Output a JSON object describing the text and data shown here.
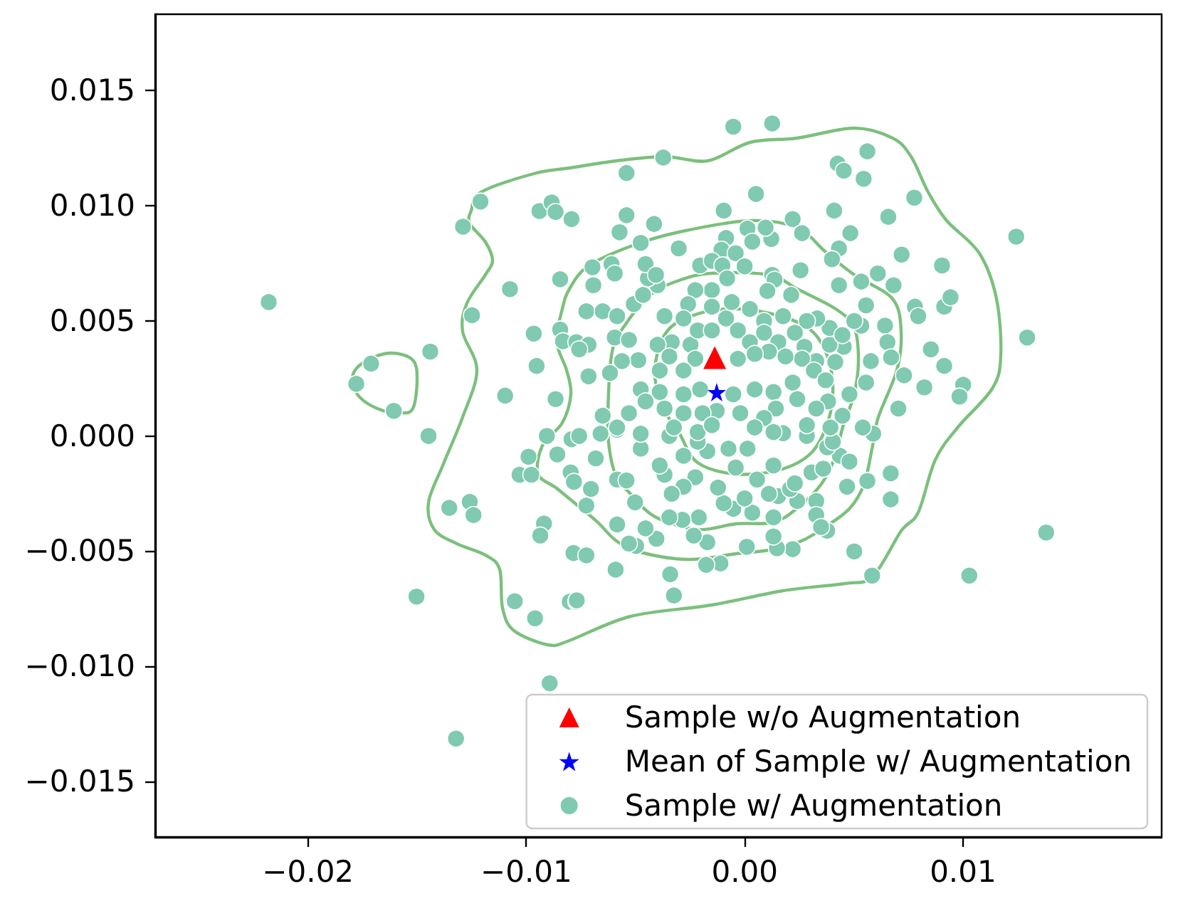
{
  "chart_data": {
    "type": "scatter",
    "xlim": [
      -0.027,
      0.0191
    ],
    "ylim": [
      -0.0174,
      0.0183
    ],
    "xticks": [
      {
        "value": -0.02,
        "label": "−0.02"
      },
      {
        "value": -0.01,
        "label": "−0.01"
      },
      {
        "value": 0,
        "label": "0.00"
      },
      {
        "value": 0.01,
        "label": "0.01"
      }
    ],
    "yticks": [
      {
        "value": -0.015,
        "label": "−0.015"
      },
      {
        "value": -0.01,
        "label": "−0.010"
      },
      {
        "value": -0.005,
        "label": "−0.005"
      },
      {
        "value": 0,
        "label": "0.000"
      },
      {
        "value": 0.005,
        "label": "0.005"
      },
      {
        "value": 0.01,
        "label": "0.010"
      },
      {
        "value": 0.015,
        "label": "0.015"
      }
    ],
    "grid": false,
    "legend": "bottom right",
    "series": [
      {
        "name": "Sample w/o Augmentation",
        "type": "scatter",
        "marker": "triangle",
        "color": "#ff0000",
        "x": [
          -0.00137
        ],
        "values": [
          0.0034
        ]
      },
      {
        "name": "Mean of Sample w/ Augmentation",
        "type": "scatter",
        "marker": "star",
        "color": "#0000ff",
        "x": [
          -0.00128
        ],
        "values": [
          0.0019
        ]
      },
      {
        "name": "Sample w/ Augmentation",
        "type": "scatter",
        "marker": "circle",
        "color": "#7fcab0",
        "x": [
          -0.0218,
          -0.0121,
          -0.0129,
          -0.0094,
          -0.00884,
          -0.00866,
          -0.00793,
          -0.01075,
          -0.00845,
          -0.01249,
          -0.00966,
          -0.00845,
          -0.00832,
          -0.00771,
          -0.0144,
          -0.01711,
          -0.01779,
          -0.01607,
          -0.00953,
          -0.01097,
          -0.00866,
          -0.01448,
          -0.00906,
          -0.00793,
          -0.0099,
          -0.01031,
          -0.00977,
          -0.00858,
          -0.00797,
          -0.00782,
          -0.01353,
          -0.01259,
          -0.01242,
          -0.00919,
          -0.00936,
          -0.00784,
          -0.01503,
          -0.01053,
          -0.0096,
          -0.00801,
          -0.00771,
          -0.00893,
          -0.01322,
          0.01029,
          0.00584,
          0.00502,
          0.00669,
          0.00669,
          0.00562,
          0.00469,
          0.00436,
          0.0048,
          0.00589,
          0.00378,
          0.00328,
          0.00328,
          0.00378,
          0.0035,
          0.0022,
          0.00148,
          0.00132,
          0.00132,
          0.00241,
          0.00154,
          0.0001,
          -0.00111,
          -0.00176,
          -0.00171,
          -0.00233,
          -0.0021,
          -0.00285,
          -0.00341,
          -0.00324,
          -0.00404,
          -0.00454,
          -0.00497,
          -0.0053,
          -0.00584,
          -0.00591,
          -0.00769,
          -0.00725,
          -0.00725,
          -0.00502,
          -0.00345,
          0.00035,
          -0.00052,
          -0.00096,
          0,
          0.00208,
          0.00111,
          0.00057,
          0.00132,
          0.0023,
          0.00306,
          0.0036,
          0.00404,
          0.00285,
          0.00176,
          -0.00041,
          -0.00122,
          -0.00226,
          -0.0028,
          -0.00334,
          -0.00367,
          -0.0028,
          -0.00171,
          -0.00215,
          -0.00074,
          0.00013,
          -0.00389,
          -0.00476,
          -0.00584,
          -0.00682,
          -0.00704,
          -0.00541,
          -0.00758,
          -0.0066,
          -0.00584,
          -0.00345,
          -0.00052,
          0.00126,
          -0.00373,
          -0.00541,
          0.00426,
          0.00454,
          0.00562,
          0.00545,
          0.00052,
          -0.00096,
          0.0041,
          0.00777,
          0.00658,
          -0.00541,
          -0.00415,
          -0.00573,
          -0.00476,
          -0.00302,
          0.0022,
          0.00263,
          0.00484,
          0.00432,
          0.004,
          0.00719,
          0.00904,
          0.00013,
          0.00035,
          0.00122,
          0.00096,
          -0.00085,
          -0.00106,
          -0.00041,
          -0.00204,
          -0.0015,
          -0.00102,
          0,
          -0.0008,
          0.00256,
          0.00126,
          0.00137,
          0.00432,
          0.00534,
          0.0061,
          0.00682,
          0.00104,
          0.00213,
          0.00556,
          0.0078,
          0.00795,
          0.00914,
          0.00943,
          0.00643,
          0.00654,
          0.00534,
          0.00502,
          0.00853,
          0.00914,
          0.01001,
          0.00984,
          0.00823,
          0.0073,
          0.00671,
          0.00578,
          0.00556,
          0.0048,
          0.00704,
          0.00541,
          0.00415,
          0.00454,
          0.00389,
          0.00389,
          0.00448,
          0.00332,
          0.00285,
          0.00176,
          0.00089,
          0.00024,
          -0.00059,
          -0.0015,
          -0.00226,
          -0.00259,
          -0.0015,
          -0.00367,
          -0.0028,
          -0.00334,
          -0.00399,
          -0.00248,
          -0.00215,
          -0.0015,
          -0.00085,
          -0.00031,
          0.00024,
          0.00089,
          0.00154,
          0.0023,
          0.00274,
          0.00328,
          0.00263,
          0.00187,
          0.00111,
          0.00046,
          -0.00031,
          -0.00226,
          -0.0028,
          -0.00389,
          -0.00345,
          -0.00487,
          -0.00562,
          -0.00617,
          -0.00715,
          -0.00715,
          -0.00758,
          -0.00595,
          -0.0053,
          -0.00725,
          -0.0065,
          -0.00584,
          -0.00508,
          -0.00465,
          -0.00399,
          -0.00443,
          -0.00693,
          -0.00697,
          -0.0061,
          -0.00595,
          -0.00454,
          -0.00406,
          -0.00476,
          -0.00389,
          -0.0028,
          -0.00204,
          -0.00052,
          0.00046,
          0.00132,
          0.0022,
          0.00317,
          0.00371,
          0.00382,
          0.00328,
          0.00241,
          0.00143,
          0.00089,
          -0.0002,
          -0.00128,
          -0.00193,
          -0.0028,
          -0.00367,
          -0.00454,
          -0.0053,
          -0.0065,
          -0.00584,
          -0.00476,
          -0.00324,
          -0.00215,
          -0.0015,
          0.00046,
          0.00132,
          0.00285,
          0.00393,
          0.00448,
          0.01244,
          0.01294,
          0.01381
        ],
        "values": [
          0.00581,
          0.01017,
          0.00908,
          0.00976,
          0.01013,
          0.00972,
          0.00941,
          0.00637,
          0.0068,
          0.00524,
          0.00444,
          0.00462,
          0.00411,
          0.00407,
          0.00366,
          0.00314,
          0.00226,
          0.00109,
          0.00304,
          0.00175,
          0.0016,
          0,
          0,
          -0.00014,
          -0.0009,
          -0.00168,
          -0.00168,
          -0.0008,
          -0.00158,
          -0.00199,
          -0.00312,
          -0.00286,
          -0.00343,
          -0.0038,
          -0.00432,
          -0.00508,
          -0.00697,
          -0.00717,
          -0.00791,
          -0.00719,
          -0.00719,
          -0.01073,
          -0.01313,
          -0.00606,
          -0.00606,
          -0.00501,
          -0.00162,
          -0.00275,
          -0.00195,
          -0.0022,
          -0.00086,
          -0.00111,
          0.0001,
          -0.00049,
          -0.00282,
          -0.00343,
          -0.00411,
          -0.00395,
          -0.00491,
          -0.00487,
          -0.00436,
          -0.00353,
          -0.00282,
          -0.00261,
          -0.00481,
          -0.00553,
          -0.00559,
          -0.00461,
          -0.00432,
          -0.00353,
          -0.00364,
          -0.006,
          -0.00692,
          -0.00446,
          -0.00401,
          -0.00477,
          -0.00467,
          -0.00384,
          -0.0058,
          -0.00713,
          -0.00518,
          -0.00302,
          -0.00288,
          -0.00353,
          -0.00333,
          -0.00316,
          -0.00292,
          -0.00271,
          -0.0023,
          -0.00251,
          -0.00189,
          -0.00128,
          -0.00205,
          -0.00158,
          -0.00142,
          -0.00025,
          0,
          0.00012,
          -0.00137,
          -0.00224,
          -0.00179,
          -0.0022,
          -0.00251,
          -0.00168,
          -0.00086,
          -0.00066,
          -0.00025,
          -0.00055,
          -0.00055,
          -0.00128,
          -0.00055,
          -0.00189,
          -0.00097,
          -0.0023,
          -0.00193,
          0,
          0.0001,
          0.00027,
          0,
          0.01342,
          0.01356,
          0.01208,
          0.01141,
          0.01182,
          0.01151,
          0.01235,
          0.01116,
          0.0105,
          0.00978,
          0.00978,
          0.01034,
          0.00951,
          0.00958,
          0.0092,
          0.00884,
          0.00838,
          0.00814,
          0.00941,
          0.0088,
          0.0088,
          0.00814,
          0.00767,
          0.00787,
          0.0074,
          0.009,
          0.00843,
          0.00855,
          0.00904,
          0.00859,
          0.00808,
          0.00793,
          0.0074,
          0.0076,
          0.0074,
          0.00736,
          0.00684,
          0.00719,
          0.00699,
          0.00678,
          0.00654,
          0.0067,
          0.00705,
          0.00654,
          0.00629,
          0.00612,
          0.00567,
          0.00561,
          0.0052,
          0.00561,
          0.00602,
          0.00479,
          0.00407,
          0.00479,
          0.00499,
          0.00376,
          0.00304,
          0.00222,
          0.00171,
          0.00211,
          0.00263,
          0.00341,
          0.00325,
          0.00232,
          0.00181,
          0.00119,
          0.00037,
          0.00321,
          0.00387,
          0.00396,
          0.00469,
          0.00438,
          0.0051,
          0.00499,
          0.0052,
          0.00499,
          0.00551,
          0.00581,
          0.00633,
          0.00633,
          0.00572,
          0.00561,
          0.0052,
          0.0051,
          0.00407,
          0.00396,
          0.00396,
          0.00458,
          0.00458,
          0.0051,
          0.00458,
          0.00407,
          0.00448,
          0.00407,
          0.00448,
          0.00387,
          0.00325,
          0.00335,
          0.00345,
          0.00366,
          0.00356,
          0.00335,
          0.00335,
          0.00284,
          0.00284,
          0.00345,
          0.00329,
          0.00325,
          0.00273,
          0.00259,
          0.00396,
          0.00376,
          0.00427,
          0.00417,
          0.00541,
          0.00541,
          0.0052,
          0.00572,
          0.00612,
          0.00654,
          0.00684,
          0.00654,
          0.00732,
          0.00746,
          0.00705,
          0.00746,
          0.00699,
          0.00202,
          0.00191,
          0.00181,
          0.00202,
          0.00181,
          0.00202,
          0.00191,
          0.00232,
          0.00284,
          0.00242,
          0.0015,
          0.00119,
          0.0016,
          0.00119,
          0.00078,
          0.00099,
          0.00109,
          0.00099,
          0.00099,
          0.00119,
          0.0015,
          0.00099,
          0.00088,
          0.00037,
          0.0001,
          0.00037,
          0.00017,
          0.00047,
          0.00037,
          0.00017,
          0.00047,
          0.00037,
          0.00088,
          0.00865,
          0.00427,
          -0.00419
        ]
      }
    ]
  }
}
